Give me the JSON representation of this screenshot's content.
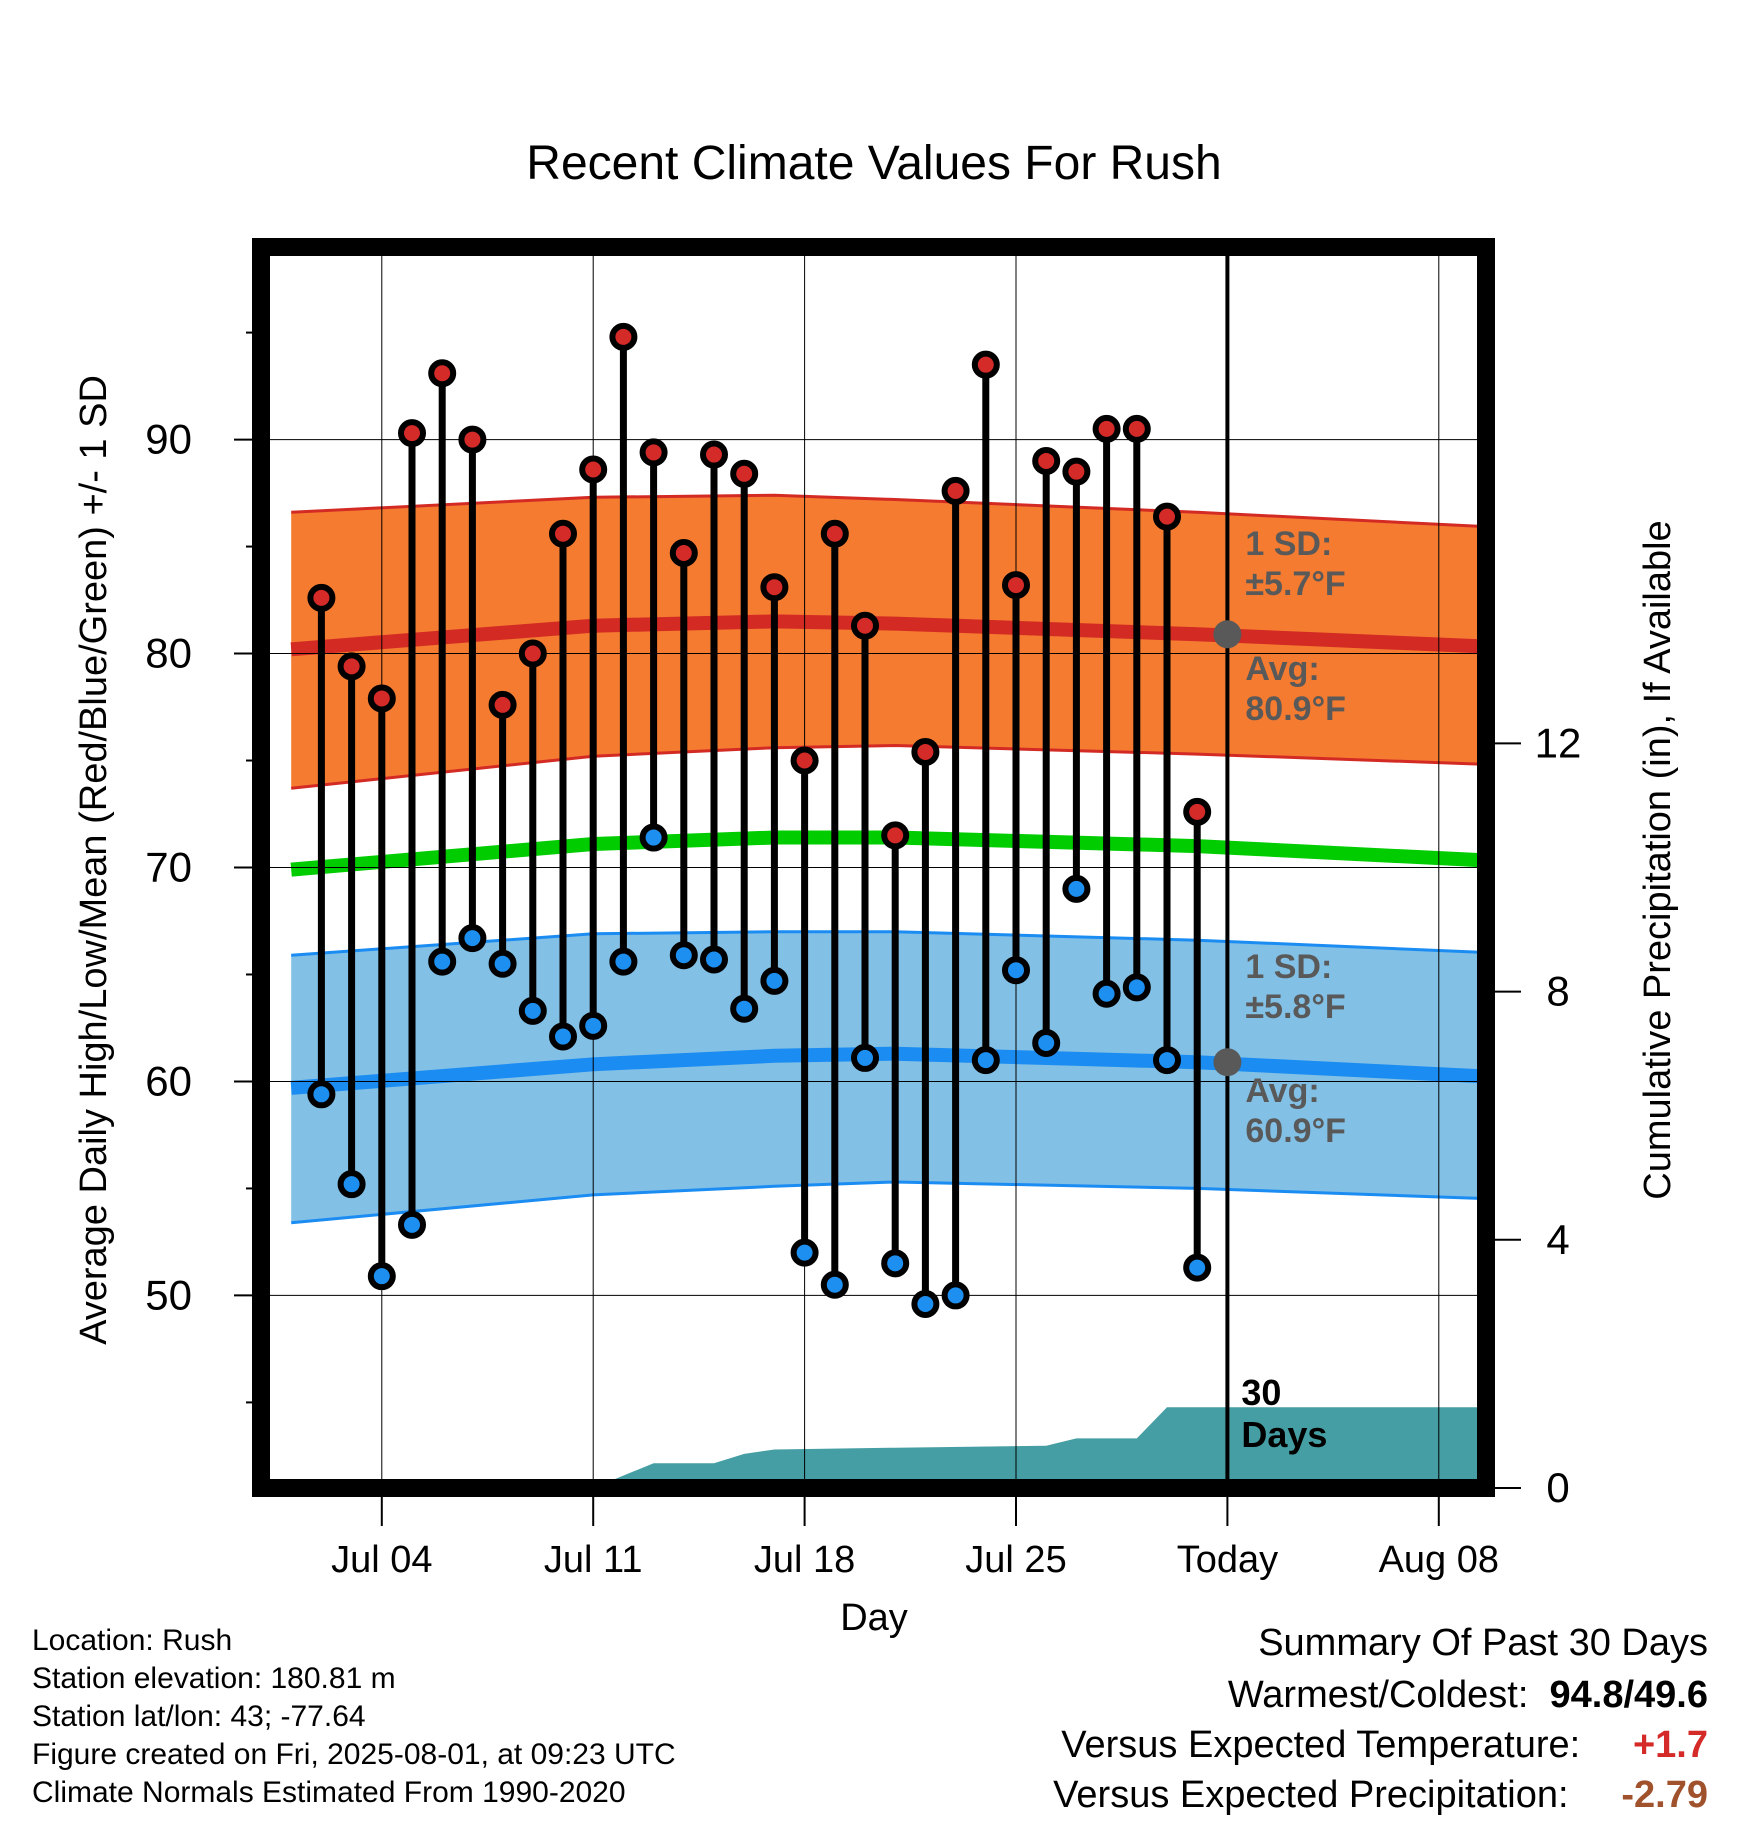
{
  "chart_data": {
    "type": "line",
    "title": "Recent Climate Values For Rush",
    "xlabel": "Day",
    "ylabel": "Average Daily High/Low/Mean (Red/Blue/Green) +/- 1 SD",
    "y2label": "Cumulative Precipitation (in), If Available",
    "x_ticks": [
      "Jul 04",
      "Jul 11",
      "Jul 18",
      "Jul 25",
      "Today",
      "Aug 08"
    ],
    "ylim": [
      41,
      99
    ],
    "yticks": [
      50,
      60,
      70,
      80,
      90
    ],
    "y2lim": [
      0,
      20
    ],
    "y2ticks": [
      0,
      4,
      8,
      12
    ],
    "days": [
      "Jul 02",
      "Jul 03",
      "Jul 04",
      "Jul 05",
      "Jul 06",
      "Jul 07",
      "Jul 08",
      "Jul 09",
      "Jul 10",
      "Jul 11",
      "Jul 12",
      "Jul 13",
      "Jul 14",
      "Jul 15",
      "Jul 16",
      "Jul 17",
      "Jul 18",
      "Jul 19",
      "Jul 20",
      "Jul 21",
      "Jul 22",
      "Jul 23",
      "Jul 24",
      "Jul 25",
      "Jul 26",
      "Jul 27",
      "Jul 28",
      "Jul 29",
      "Jul 30",
      "Jul 31"
    ],
    "high": [
      82.6,
      79.4,
      77.9,
      90.3,
      93.1,
      90.0,
      77.6,
      80.0,
      85.6,
      88.6,
      94.8,
      89.4,
      84.7,
      89.3,
      88.4,
      83.1,
      75.0,
      85.6,
      81.3,
      71.5,
      75.4,
      87.6,
      93.5,
      83.2,
      89.0,
      88.5,
      90.5,
      90.5,
      86.4,
      72.6
    ],
    "low": [
      59.4,
      55.2,
      50.9,
      53.3,
      65.6,
      66.7,
      65.5,
      63.3,
      62.1,
      62.6,
      65.6,
      71.4,
      65.9,
      65.7,
      63.4,
      64.7,
      52.0,
      50.5,
      61.1,
      51.5,
      49.6,
      50.0,
      61.0,
      65.2,
      61.8,
      69.0,
      64.1,
      64.4,
      61.0,
      51.3
    ],
    "normal_high": {
      "days": [
        "Jul 01",
        "Jul 11",
        "Jul 17",
        "Jul 21",
        "Jul 31",
        "Aug 10"
      ],
      "mean": [
        80.2,
        81.3,
        81.5,
        81.4,
        80.9,
        80.3
      ],
      "upper": [
        86.6,
        87.3,
        87.4,
        87.2,
        86.6,
        85.9
      ],
      "lower": [
        73.7,
        75.2,
        75.6,
        75.7,
        75.3,
        74.8
      ]
    },
    "normal_low": {
      "days": [
        "Jul 01",
        "Jul 11",
        "Jul 17",
        "Jul 21",
        "Jul 31",
        "Aug 10"
      ],
      "mean": [
        59.7,
        60.8,
        61.2,
        61.3,
        60.9,
        60.2
      ],
      "upper": [
        65.9,
        66.9,
        67.0,
        67.0,
        66.6,
        66.0
      ],
      "lower": [
        53.4,
        54.7,
        55.1,
        55.3,
        55.0,
        54.5
      ]
    },
    "normal_mean": {
      "days": [
        "Jul 01",
        "Jul 11",
        "Jul 17",
        "Jul 21",
        "Jul 31",
        "Aug 10"
      ],
      "values": [
        69.9,
        71.1,
        71.4,
        71.4,
        71.0,
        70.3
      ]
    },
    "precip_cumulative": {
      "days": [
        "Jul 11",
        "Jul 13",
        "Jul 15",
        "Jul 16",
        "Jul 17",
        "Jul 21",
        "Jul 26",
        "Jul 27",
        "Jul 29",
        "Jul 30",
        "Aug 10"
      ],
      "values": [
        0.0,
        0.4,
        0.4,
        0.55,
        0.62,
        0.65,
        0.68,
        0.8,
        0.8,
        1.3,
        1.3
      ]
    },
    "annotations": {
      "high_sd": "1 SD:",
      "high_sd_val": "±5.7°F",
      "high_avg": "Avg:",
      "high_avg_val": "80.9°F",
      "low_sd": "1 SD:",
      "low_sd_val": "±5.8°F",
      "low_avg": "Avg:",
      "low_avg_val": "60.9°F",
      "days_label_1": "30",
      "days_label_2": "Days"
    },
    "colors": {
      "high_band": "#f47b30",
      "high_line": "#d32a24",
      "low_band": "#82c0e6",
      "low_line": "#1b8cf2",
      "mean_line": "#00cc00",
      "precip": "#459ea3",
      "high_marker": "#d42a28",
      "low_marker": "#1d8ff0",
      "annotation": "#595959"
    },
    "grid": true
  },
  "info": {
    "location": "Location: Rush",
    "elevation": "Station elevation: 180.81 m",
    "latlon": "Station lat/lon: 43; -77.64",
    "created": "Figure created on Fri, 2025-08-01, at 09:23 UTC",
    "normals": "Climate Normals Estimated From 1990-2020"
  },
  "summary": {
    "title": "Summary Of Past 30 Days",
    "warmest_label": "Warmest/Coldest:",
    "warmest_value": "94.8/49.6",
    "temp_label": "Versus Expected Temperature:",
    "temp_value": "+1.7",
    "temp_color": "#d42a28",
    "precip_label": "Versus Expected Precipitation:",
    "precip_value": "-2.79",
    "precip_color": "#a0522d"
  }
}
